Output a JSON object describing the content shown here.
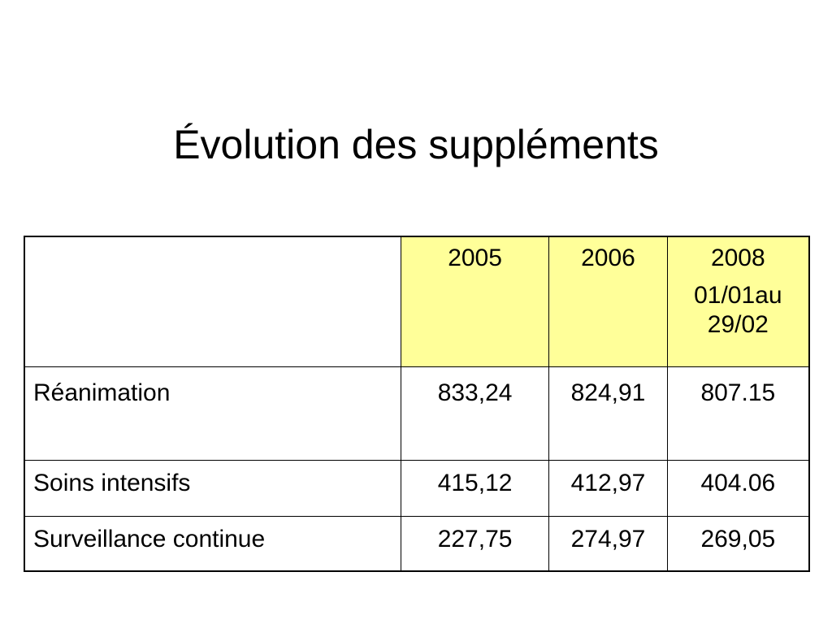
{
  "title": "Évolution des suppléments",
  "table": {
    "headers": {
      "corner": "",
      "col_2005": "2005",
      "col_2006": "2006",
      "col_2008": "2008",
      "col_2008_sub": "01/01au 29/02"
    },
    "rows": [
      {
        "label": "Réanimation",
        "v2005": "833,24",
        "v2006": "824,91",
        "v2008": "807.15"
      },
      {
        "label": "Soins intensifs",
        "v2005": "415,12",
        "v2006": "412,97",
        "v2008": "404.06"
      },
      {
        "label": "Surveillance continue",
        "v2005": "227,75",
        "v2006": "274,97",
        "v2008": "269,05"
      }
    ]
  },
  "colors": {
    "header_fill": "#ffff99",
    "border": "#000000",
    "background": "#ffffff"
  }
}
